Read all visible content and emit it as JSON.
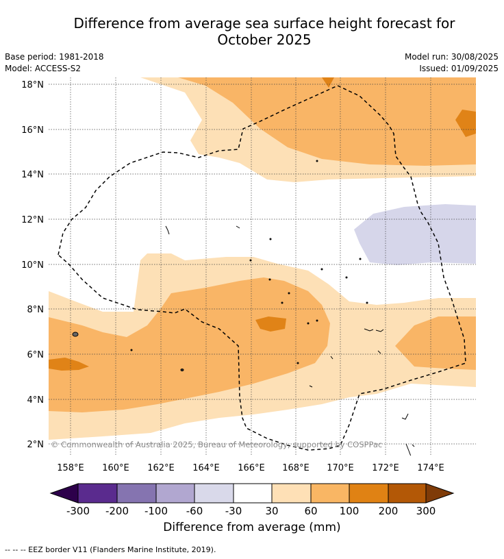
{
  "title_line1": "Difference from average sea surface height forecast for",
  "title_line2": "October 2025",
  "meta_left": {
    "base_period": "Base period: 1981-2018",
    "model": "Model: ACCESS-S2"
  },
  "meta_right": {
    "model_run": "Model run: 30/08/2025",
    "issued": "Issued: 01/09/2025"
  },
  "map": {
    "lat_labels": [
      "18°N",
      "16°N",
      "14°N",
      "12°N",
      "10°N",
      "8°N",
      "6°N",
      "4°N",
      "2°N"
    ],
    "lon_labels": [
      "158°E",
      "160°E",
      "162°E",
      "164°E",
      "166°E",
      "168°E",
      "170°E",
      "172°E",
      "174°E"
    ],
    "copyright": "© Commonwealth of Australia 2025, Bureau of Meteorology, supported by COSPPac",
    "colors": {
      "neg_high": "#d6d6ea",
      "pos_30_60": "#fde0b6",
      "pos_60_100": "#f9b566",
      "pos_100_200": "#e08317"
    }
  },
  "colorbar": {
    "ticks": [
      "-300",
      "-200",
      "-100",
      "-60",
      "-30",
      "30",
      "60",
      "100",
      "200",
      "300"
    ],
    "colors": [
      "#2d004b",
      "#5a2b8e",
      "#8574b0",
      "#b1a7d0",
      "#d9d9ea",
      "#ffffff",
      "#fee0b6",
      "#f9b664",
      "#e08214",
      "#b35806",
      "#7f3b08"
    ],
    "label": "Difference from average (mm)"
  },
  "footnote": "--  --  -- EEZ border V11 (Flanders Marine Institute, 2019)."
}
